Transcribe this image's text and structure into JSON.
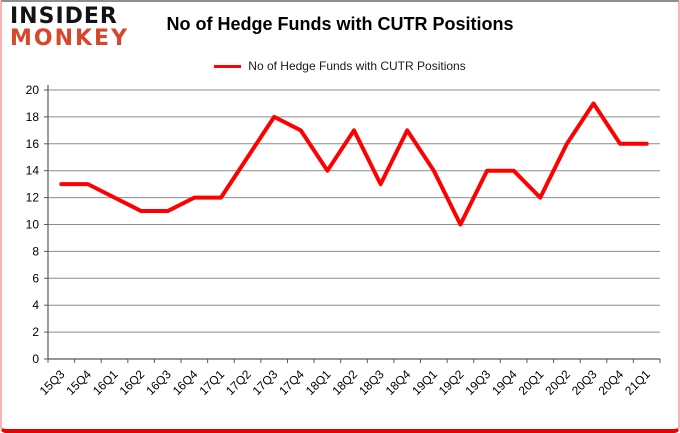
{
  "logo": {
    "line1": "INSIDER",
    "line2": "MONKEY",
    "line1_color": "#131313",
    "line2_color": "#d9472b"
  },
  "header": {
    "title": "No of Hedge Funds with CUTR Positions"
  },
  "legend": {
    "label": "No of Hedge Funds with CUTR Positions",
    "line_color": "#fe0000"
  },
  "chart_data": {
    "type": "line",
    "title": "No of Hedge Funds with CUTR Positions",
    "categories": [
      "15Q3",
      "15Q4",
      "16Q1",
      "16Q2",
      "16Q3",
      "16Q4",
      "17Q1",
      "17Q2",
      "17Q3",
      "17Q4",
      "18Q1",
      "18Q2",
      "18Q3",
      "18Q4",
      "19Q1",
      "19Q2",
      "19Q3",
      "19Q4",
      "20Q1",
      "20Q2",
      "20Q3",
      "20Q4",
      "21Q1"
    ],
    "series": [
      {
        "name": "No of Hedge Funds with CUTR Positions",
        "color": "#fe0000",
        "values": [
          13,
          13,
          12,
          11,
          11,
          12,
          12,
          15,
          18,
          17,
          14,
          17,
          13,
          17,
          14,
          10,
          14,
          14,
          12,
          16,
          19,
          16,
          16
        ]
      }
    ],
    "xlabel": "",
    "ylabel": "",
    "ylim": [
      0,
      20
    ],
    "ytick_step": 2,
    "grid": true,
    "legend_position": "top-center",
    "gridline_color": "#8c8c8c",
    "axis_color": "#595959",
    "tick_label_color": "#000000"
  }
}
